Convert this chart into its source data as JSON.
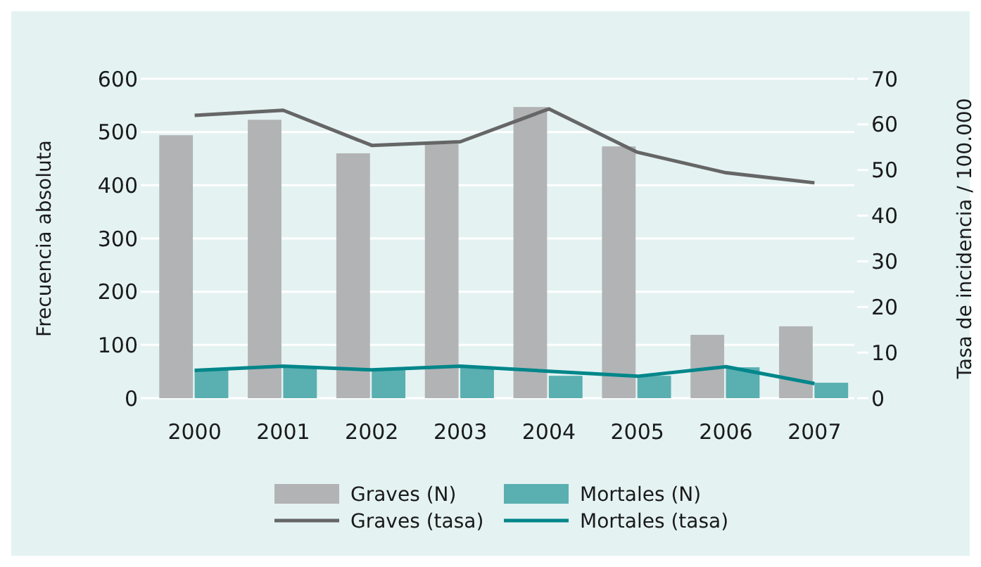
{
  "chart_data": {
    "type": "bar",
    "ylabel": "Frecuencia absoluta",
    "y2label": "Tasa de incidencia / 100.000",
    "categories": [
      "2000",
      "2001",
      "2002",
      "2003",
      "2004",
      "2005",
      "2006",
      "2007"
    ],
    "series": [
      {
        "name": "Graves (N)",
        "color": "#b2b3b5",
        "values": [
          494,
          523,
          460,
          478,
          547,
          473,
          119,
          135
        ]
      },
      {
        "name": "Mortales (N)",
        "color": "#5aafb0",
        "values": [
          53,
          58,
          53,
          58,
          42,
          42,
          58,
          29
        ]
      },
      {
        "name": "Graves (tasa)",
        "type": "line",
        "axis": "y2",
        "color": "#666666",
        "values": [
          62.0,
          63.1,
          55.4,
          56.2,
          63.4,
          53.9,
          49.4,
          47.2
        ]
      },
      {
        "name": "Mortales (tasa)",
        "type": "line",
        "axis": "y2",
        "color": "#00868a",
        "values": [
          6.1,
          7.0,
          6.2,
          7.0,
          5.9,
          4.8,
          6.9,
          3.2
        ]
      }
    ],
    "ylim": [
      0,
      600
    ],
    "yticks": [
      0,
      100,
      200,
      300,
      400,
      500,
      600
    ],
    "y2lim": [
      0,
      70
    ],
    "y2ticks": [
      0,
      10,
      20,
      30,
      40,
      50,
      60,
      70
    ],
    "grid": "y",
    "legend": "bottom",
    "marker": "none",
    "line_style": "solid"
  }
}
